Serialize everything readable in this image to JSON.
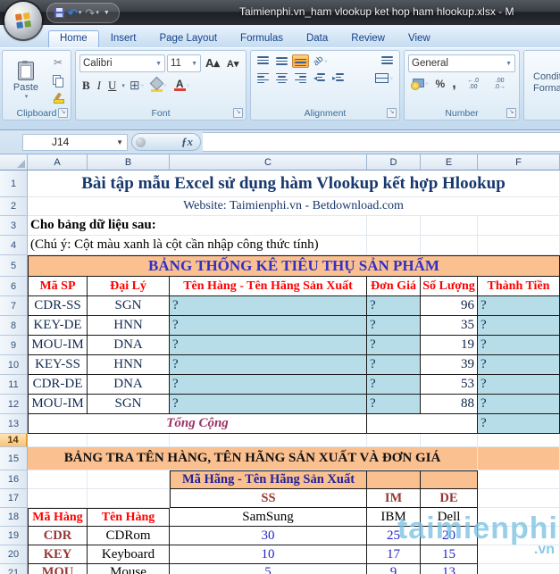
{
  "window": {
    "title": "Taimienphi.vn_ham vlookup ket hop ham hlookup.xlsx - M"
  },
  "ribbon": {
    "tabs": [
      {
        "label": "Home",
        "active": true
      },
      {
        "label": "Insert"
      },
      {
        "label": "Page Layout"
      },
      {
        "label": "Formulas"
      },
      {
        "label": "Data"
      },
      {
        "label": "Review"
      },
      {
        "label": "View"
      }
    ],
    "clipboard": {
      "paste": "Paste",
      "label": "Clipboard"
    },
    "font": {
      "font_name": "Calibri",
      "font_size": "11",
      "bold": "B",
      "italic": "I",
      "underline": "U",
      "grow_font": "A▴",
      "shrink_font": "A▾",
      "label": "Font"
    },
    "alignment": {
      "orientation": "ab",
      "label": "Alignment"
    },
    "number": {
      "format": "General",
      "percent": "%",
      "comma": ",",
      "decimal_increase": "←.0 .00",
      "decimal_decrease": ".00 .0→",
      "label": "Number"
    },
    "conditional": {
      "line1": "Conditional",
      "line2": "Formatting"
    }
  },
  "formula_bar": {
    "name_box": "J14",
    "fx": "ƒx"
  },
  "sheet": {
    "columns": [
      "A",
      "B",
      "C",
      "D",
      "E",
      "F"
    ],
    "active_row": 14,
    "watermark": {
      "text": "taimienphi",
      "suffix": ".vn"
    },
    "rows": [
      {
        "n": 1,
        "cells": [
          {
            "col": 0,
            "span": 6,
            "t": "Bài tập mẫu Excel sử dụng hàm Vlookup kết hợp Hlookup",
            "s": "t1"
          }
        ]
      },
      {
        "n": 2,
        "cells": [
          {
            "col": 0,
            "span": 6,
            "t": "Website: Taimienphi.vn - Betdownload.com",
            "s": "t2"
          }
        ]
      },
      {
        "n": 3,
        "cells": [
          {
            "col": 0,
            "span": 3,
            "t": "Cho bảng dữ liệu sau:",
            "s": "note bold"
          },
          {
            "col": 3
          },
          {
            "col": 4
          },
          {
            "col": 5
          }
        ]
      },
      {
        "n": 4,
        "cells": [
          {
            "col": 0,
            "span": 3,
            "t": "(Chú ý: Cột màu xanh là cột cần nhập công thức tính)",
            "s": "note"
          },
          {
            "col": 3
          },
          {
            "col": 4
          },
          {
            "col": 5
          }
        ]
      },
      {
        "n": 5,
        "cells": [
          {
            "col": 0,
            "span": 6,
            "t": "BẢNG THỐNG KÊ TIÊU THỤ SẢN PHẨM",
            "s": "band1 tb tb-l tb-t"
          }
        ]
      },
      {
        "n": 6,
        "cells": [
          {
            "col": 0,
            "t": "Mã SP",
            "s": "h-red tb tb-l"
          },
          {
            "col": 1,
            "t": "Đại Lý",
            "s": "h-red tb"
          },
          {
            "col": 2,
            "t": "Tên Hàng - Tên Hãng Sản Xuất",
            "s": "h-red tb"
          },
          {
            "col": 3,
            "t": "Đơn Giá",
            "s": "h-red tb"
          },
          {
            "col": 4,
            "t": "Số Lượng",
            "s": "h-red tb"
          },
          {
            "col": 5,
            "t": "Thành Tiền",
            "s": "h-red tb"
          }
        ]
      },
      {
        "n": 7,
        "cells": [
          {
            "col": 0,
            "t": "CDR-SS",
            "s": "code tb tb-l"
          },
          {
            "col": 1,
            "t": "SGN",
            "s": "code tb"
          },
          {
            "col": 2,
            "t": "?",
            "s": "q tb"
          },
          {
            "col": 3,
            "t": "?",
            "s": "q tb"
          },
          {
            "col": 4,
            "t": "96",
            "s": "num tb"
          },
          {
            "col": 5,
            "t": "?",
            "s": "q tb"
          }
        ]
      },
      {
        "n": 8,
        "cells": [
          {
            "col": 0,
            "t": "KEY-DE",
            "s": "code tb tb-l"
          },
          {
            "col": 1,
            "t": "HNN",
            "s": "code tb"
          },
          {
            "col": 2,
            "t": "?",
            "s": "q tb"
          },
          {
            "col": 3,
            "t": "?",
            "s": "q tb"
          },
          {
            "col": 4,
            "t": "35",
            "s": "num tb"
          },
          {
            "col": 5,
            "t": "?",
            "s": "q tb"
          }
        ]
      },
      {
        "n": 9,
        "cells": [
          {
            "col": 0,
            "t": "MOU-IM",
            "s": "code tb tb-l"
          },
          {
            "col": 1,
            "t": "DNA",
            "s": "code tb"
          },
          {
            "col": 2,
            "t": "?",
            "s": "q tb"
          },
          {
            "col": 3,
            "t": "?",
            "s": "q tb"
          },
          {
            "col": 4,
            "t": "19",
            "s": "num tb"
          },
          {
            "col": 5,
            "t": "?",
            "s": "q tb"
          }
        ]
      },
      {
        "n": 10,
        "cells": [
          {
            "col": 0,
            "t": "KEY-SS",
            "s": "code tb tb-l"
          },
          {
            "col": 1,
            "t": "HNN",
            "s": "code tb"
          },
          {
            "col": 2,
            "t": "?",
            "s": "q tb"
          },
          {
            "col": 3,
            "t": "?",
            "s": "q tb"
          },
          {
            "col": 4,
            "t": "39",
            "s": "num tb"
          },
          {
            "col": 5,
            "t": "?",
            "s": "q tb"
          }
        ]
      },
      {
        "n": 11,
        "cells": [
          {
            "col": 0,
            "t": "CDR-DE",
            "s": "code tb tb-l"
          },
          {
            "col": 1,
            "t": "DNA",
            "s": "code tb"
          },
          {
            "col": 2,
            "t": "?",
            "s": "q tb"
          },
          {
            "col": 3,
            "t": "?",
            "s": "q tb"
          },
          {
            "col": 4,
            "t": "53",
            "s": "num tb"
          },
          {
            "col": 5,
            "t": "?",
            "s": "q tb"
          }
        ]
      },
      {
        "n": 12,
        "cells": [
          {
            "col": 0,
            "t": "MOU-IM",
            "s": "code tb tb-l"
          },
          {
            "col": 1,
            "t": "SGN",
            "s": "code tb"
          },
          {
            "col": 2,
            "t": "?",
            "s": "q tb"
          },
          {
            "col": 3,
            "t": "?",
            "s": "q tb"
          },
          {
            "col": 4,
            "t": "88",
            "s": "num tb"
          },
          {
            "col": 5,
            "t": "?",
            "s": "q tb"
          }
        ]
      },
      {
        "n": 13,
        "cells": [
          {
            "col": 0,
            "span": 3,
            "t": "Tổng Cộng",
            "s": "total tb tb-l"
          },
          {
            "col": 3,
            "span": 2,
            "s": "tb"
          },
          {
            "col": 5,
            "t": "?",
            "s": "q tb"
          }
        ]
      },
      {
        "n": 14,
        "cells": [
          {
            "col": 0
          },
          {
            "col": 1
          },
          {
            "col": 2
          },
          {
            "col": 3
          },
          {
            "col": 4
          },
          {
            "col": 5
          }
        ]
      },
      {
        "n": 15,
        "cells": [
          {
            "col": 0,
            "span": 5,
            "t": "BẢNG TRA TÊN HÀNG, TÊN HÃNG SẢN XUẤT VÀ ĐƠN GIÁ",
            "s": "band2"
          },
          {
            "col": 5,
            "s": "band2"
          }
        ]
      },
      {
        "n": 16,
        "cells": [
          {
            "col": 0
          },
          {
            "col": 1
          },
          {
            "col": 2,
            "t": "Mã Hãng - Tên Hãng Sản Xuất",
            "s": "h-navy tb tb-l tb-t"
          },
          {
            "col": 3,
            "s": "orange tb tb-t"
          },
          {
            "col": 4,
            "s": "orange tb tb-t"
          },
          {
            "col": 5
          }
        ]
      },
      {
        "n": 17,
        "cells": [
          {
            "col": 0
          },
          {
            "col": 1
          },
          {
            "col": 2,
            "t": "SS",
            "s": "h-dr tb tb-l"
          },
          {
            "col": 3,
            "t": "IM",
            "s": "h-dr tb"
          },
          {
            "col": 4,
            "t": "DE",
            "s": "h-dr tb"
          },
          {
            "col": 5
          }
        ]
      },
      {
        "n": 18,
        "cells": [
          {
            "col": 0,
            "t": "Mã Hàng",
            "s": "h-red tb tb-l tb-t"
          },
          {
            "col": 1,
            "t": "Tên Hàng",
            "s": "h-red tb tb-t"
          },
          {
            "col": 2,
            "t": "SamSung",
            "s": "name tb"
          },
          {
            "col": 3,
            "t": "IBM",
            "s": "name tb"
          },
          {
            "col": 4,
            "t": "Dell",
            "s": "name tb"
          },
          {
            "col": 5
          }
        ]
      },
      {
        "n": 19,
        "cells": [
          {
            "col": 0,
            "t": "CDR",
            "s": "code2 tb tb-l"
          },
          {
            "col": 1,
            "t": "CDRom",
            "s": "name tb"
          },
          {
            "col": 2,
            "t": "30",
            "s": "bnum tb"
          },
          {
            "col": 3,
            "t": "25",
            "s": "bnum tb"
          },
          {
            "col": 4,
            "t": "20",
            "s": "bnum tb"
          },
          {
            "col": 5
          }
        ]
      },
      {
        "n": 20,
        "cells": [
          {
            "col": 0,
            "t": "KEY",
            "s": "code2 tb tb-l"
          },
          {
            "col": 1,
            "t": "Keyboard",
            "s": "name tb"
          },
          {
            "col": 2,
            "t": "10",
            "s": "bnum tb"
          },
          {
            "col": 3,
            "t": "17",
            "s": "bnum tb"
          },
          {
            "col": 4,
            "t": "15",
            "s": "bnum tb"
          },
          {
            "col": 5
          }
        ]
      },
      {
        "n": 21,
        "cells": [
          {
            "col": 0,
            "t": "MOU",
            "s": "code2 tb tb-l"
          },
          {
            "col": 1,
            "t": "Mouse",
            "s": "name tb"
          },
          {
            "col": 2,
            "t": "5",
            "s": "bnum tb"
          },
          {
            "col": 3,
            "t": "9",
            "s": "bnum tb"
          },
          {
            "col": 4,
            "t": "13",
            "s": "bnum tb"
          },
          {
            "col": 5
          }
        ]
      }
    ]
  },
  "colors": {
    "band_orange": "#FAC090",
    "formula_cell_blue": "#B7DEE8",
    "header_red": "#FF0000",
    "code_dark_red": "#963634",
    "value_blue": "#2323CB",
    "total_magenta": "#993366",
    "title_navy": "#17386E",
    "band_title_blue": "#3030C8",
    "lookup_header_navy": "#22229A"
  }
}
